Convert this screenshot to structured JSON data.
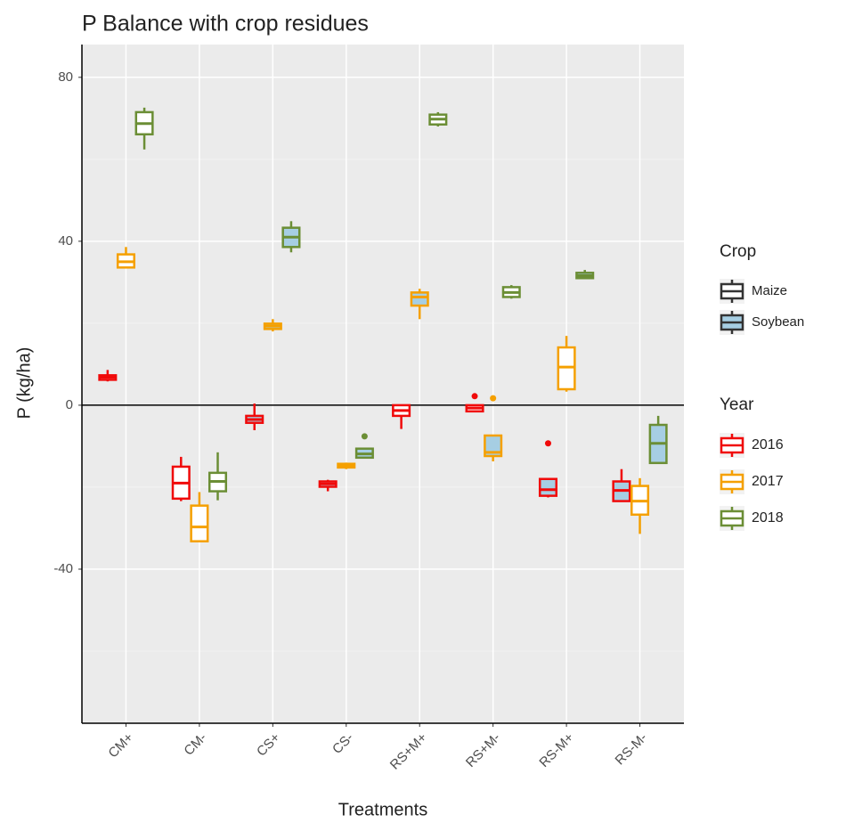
{
  "chart_data": {
    "type": "boxplot",
    "title": "P Balance with crop residues",
    "x_label": "Treatments",
    "y_label": "P (kg/ha)",
    "categories": [
      "CM+",
      "CM-",
      "CS+",
      "CS-",
      "RS+M+",
      "RS+M-",
      "RS-M+",
      "RS-M-"
    ],
    "ylim": [
      -77.6,
      88
    ],
    "yticks": [
      -40,
      0,
      40,
      80
    ],
    "minor_grid": [
      -60,
      -20,
      20,
      60
    ],
    "hline": 0,
    "grid": true,
    "legend_position": "right",
    "fill_legend": {
      "title": "Crop",
      "items": [
        {
          "name": "Maize",
          "fill": "#ffffff"
        },
        {
          "name": "Soybean",
          "fill": "#a6cee3"
        }
      ]
    },
    "color_legend_title": "Year",
    "series": [
      {
        "name": "2016",
        "color": "#f00a0a",
        "crop": [
          "Maize",
          "Maize",
          "Soybean",
          "Soybean",
          "Maize",
          "Maize",
          "Soybean",
          "Soybean"
        ],
        "boxes": [
          {
            "low": 5.8,
            "q1": 6.2,
            "median": 6.8,
            "q3": 7.3,
            "high": 8.6
          },
          {
            "low": -23.4,
            "q1": -22.8,
            "median": -19,
            "q3": -15,
            "high": -12.6
          },
          {
            "low": -6.1,
            "q1": -4.3,
            "median": -3.5,
            "q3": -2.6,
            "high": 0.4
          },
          {
            "low": -21,
            "q1": -19.9,
            "median": -19.2,
            "q3": -18.6,
            "high": -18.2
          },
          {
            "low": -5.8,
            "q1": -2.6,
            "median": -1.3,
            "q3": 0,
            "high": 0
          },
          {
            "low": -1.7,
            "q1": -1.5,
            "median": -0.7,
            "q3": 0,
            "high": 0,
            "outliers": [
              2.2
            ]
          },
          {
            "low": -22.5,
            "q1": -22.1,
            "median": -20.6,
            "q3": -18,
            "high": -18,
            "outliers": [
              -9.3
            ]
          },
          {
            "low": -23.4,
            "q1": -23.4,
            "median": -20.8,
            "q3": -18.6,
            "high": -15.6
          }
        ]
      },
      {
        "name": "2017",
        "color": "#f5a000",
        "crop": [
          "Maize",
          "Maize",
          "Soybean",
          "Soybean",
          "Soybean",
          "Soybean",
          "Maize",
          "Maize"
        ],
        "boxes": [
          {
            "low": 33.6,
            "q1": 33.6,
            "median": 35,
            "q3": 36.8,
            "high": 38.6
          },
          {
            "low": -33.2,
            "q1": -33.2,
            "median": -29.7,
            "q3": -24.5,
            "high": -21.2
          },
          {
            "low": 18,
            "q1": 18.6,
            "median": 19.3,
            "q3": 19.9,
            "high": 21
          },
          {
            "low": -15.6,
            "q1": -15.2,
            "median": -14.8,
            "q3": -14.3,
            "high": -14
          },
          {
            "low": 21,
            "q1": 24.3,
            "median": 26.4,
            "q3": 27.5,
            "high": 28.4
          },
          {
            "low": -13.7,
            "q1": -12.4,
            "median": -11.5,
            "q3": -7.4,
            "high": -7.4,
            "outliers": [
              1.7
            ]
          },
          {
            "low": 3.3,
            "q1": 3.9,
            "median": 9.3,
            "q3": 14.1,
            "high": 16.9
          },
          {
            "low": -31.4,
            "q1": -26.7,
            "median": -23.4,
            "q3": -19.7,
            "high": -17.8
          }
        ]
      },
      {
        "name": "2018",
        "color": "#6b8e35",
        "crop": [
          "Maize",
          "Maize",
          "Soybean",
          "Soybean",
          "Maize",
          "Maize",
          "Soybean",
          "Soybean"
        ],
        "boxes": [
          {
            "low": 62.4,
            "q1": 66.1,
            "median": 68.7,
            "q3": 71.5,
            "high": 72.6
          },
          {
            "low": -23.2,
            "q1": -21,
            "median": -18.6,
            "q3": -16.5,
            "high": -11.5
          },
          {
            "low": 37.3,
            "q1": 38.6,
            "median": 41,
            "q3": 43.3,
            "high": 44.9
          },
          {
            "low": -13,
            "q1": -12.8,
            "median": -11.9,
            "q3": -10.6,
            "high": -10.4,
            "outliers": [
              -7.6
            ]
          },
          {
            "low": 68,
            "q1": 68.5,
            "median": 69.8,
            "q3": 70.9,
            "high": 71.5
          },
          {
            "low": 26,
            "q1": 26.4,
            "median": 27.5,
            "q3": 28.8,
            "high": 29.3
          },
          {
            "low": 30.8,
            "q1": 31,
            "median": 31.6,
            "q3": 32.3,
            "high": 33
          },
          {
            "low": -14.1,
            "q1": -14.1,
            "median": -9.3,
            "q3": -4.8,
            "high": -2.6
          }
        ]
      }
    ]
  }
}
